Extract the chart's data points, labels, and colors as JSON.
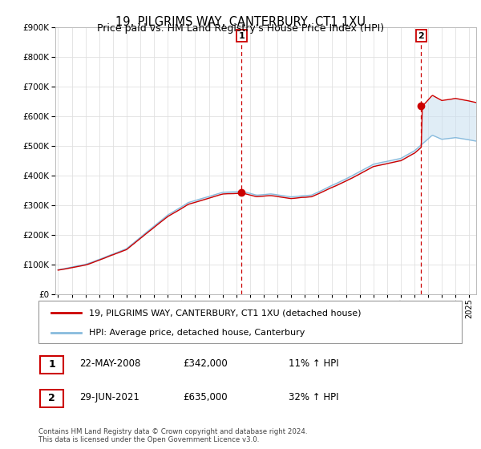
{
  "title": "19, PILGRIMS WAY, CANTERBURY, CT1 1XU",
  "subtitle": "Price paid vs. HM Land Registry's House Price Index (HPI)",
  "ylim": [
    0,
    900000
  ],
  "xlim_start": 1994.8,
  "xlim_end": 2025.5,
  "sale1_date": 2008.39,
  "sale1_price": 342000,
  "sale1_label": "1",
  "sale2_date": 2021.49,
  "sale2_price": 635000,
  "sale2_label": "2",
  "line_color_property": "#cc0000",
  "line_color_hpi": "#88bbdd",
  "fill_color": "#c8dff0",
  "legend_property": "19, PILGRIMS WAY, CANTERBURY, CT1 1XU (detached house)",
  "legend_hpi": "HPI: Average price, detached house, Canterbury",
  "table_row1": [
    "1",
    "22-MAY-2008",
    "£342,000",
    "11% ↑ HPI"
  ],
  "table_row2": [
    "2",
    "29-JUN-2021",
    "£635,000",
    "32% ↑ HPI"
  ],
  "footnote": "Contains HM Land Registry data © Crown copyright and database right 2024.\nThis data is licensed under the Open Government Licence v3.0.",
  "grid_color": "#e0e0e0",
  "box_color": "#cc0000"
}
